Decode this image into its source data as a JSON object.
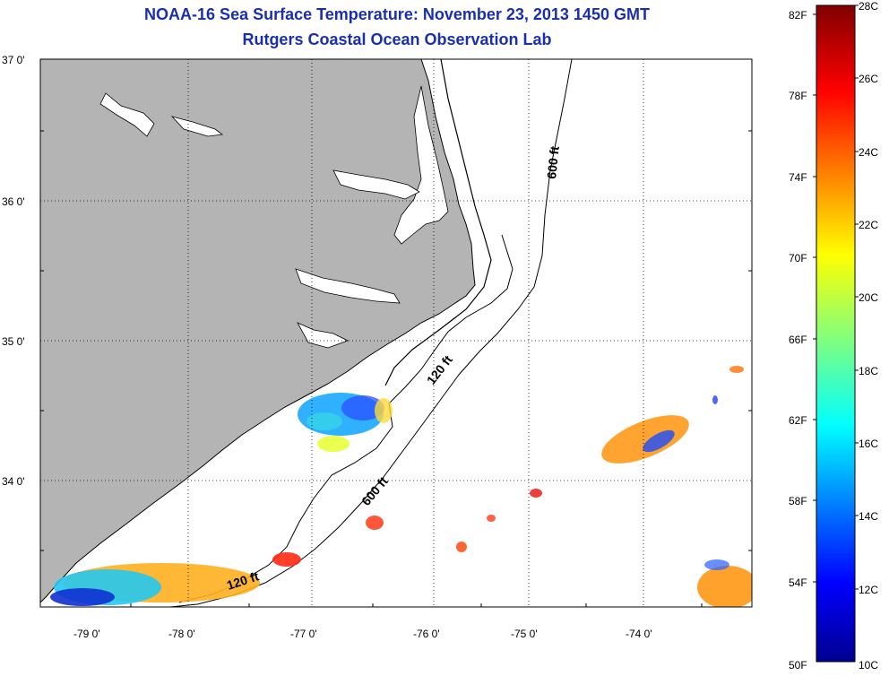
{
  "title": "NOAA-16 Sea Surface Temperature:  November 23, 2013 1450 GMT",
  "subtitle": "Rutgers Coastal Ocean Observation Lab",
  "map": {
    "lon_labels": [
      "-79 0'",
      "-78 0'",
      "-77 0'",
      "-76 0'",
      "-75 0'",
      "-74 0'"
    ],
    "lat_labels": [
      "37 0'",
      "36 0'",
      "35 0'",
      "34 0'"
    ],
    "contours": [
      "600 ft",
      "120 ft",
      "600 ft",
      "120 ft"
    ],
    "colors": {
      "land": "#b4b4b4",
      "ocean": "#ffffff",
      "grid": "#000000"
    }
  },
  "colorbar": {
    "fahrenheit_labels": [
      "82F",
      "78F",
      "74F",
      "70F",
      "66F",
      "62F",
      "58F",
      "54F",
      "50F"
    ],
    "celsius_labels": [
      "28C",
      "26C",
      "24C",
      "22C",
      "20C",
      "18C",
      "16C",
      "14C",
      "12C",
      "10C"
    ]
  }
}
